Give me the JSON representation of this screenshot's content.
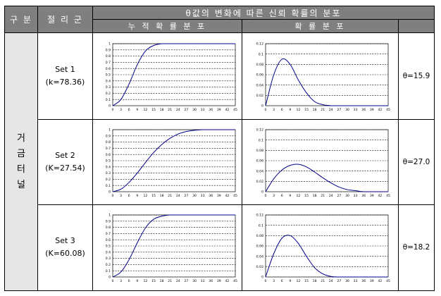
{
  "header": {
    "category": "구 분",
    "cluster": "절 리 군",
    "theta_header": "θ값의 변화에 따른 신뢰 확률의 분포",
    "cumulative": "누 적 확 률 분 포",
    "probability": "확 률 분 포"
  },
  "category_label": "거 금 터 널",
  "rows": [
    {
      "set": "Set 1",
      "k": "(k=78.36)",
      "theta": "θ=15.9"
    },
    {
      "set": "Set 2",
      "k": "(K=27.54)",
      "theta": "θ=27.0"
    },
    {
      "set": "Set 3",
      "k": "(K=60.08)",
      "theta": "θ=18.2"
    }
  ],
  "chart_data": [
    {
      "type": "line",
      "set": "Set 1",
      "kind": "cumulative",
      "x": [
        0,
        3,
        6,
        9,
        12,
        15,
        18,
        21,
        24,
        27,
        30,
        33,
        36,
        39,
        42,
        45
      ],
      "y": [
        0,
        0.1,
        0.35,
        0.66,
        0.88,
        0.97,
        1,
        1,
        1,
        1,
        1,
        1,
        1,
        1,
        1,
        1
      ],
      "xlim": [
        0,
        45
      ],
      "ylim": [
        0,
        1
      ],
      "xticks": [
        "0",
        "3",
        "6",
        "9",
        "12",
        "15",
        "18",
        "21",
        "24",
        "27",
        "30",
        "33",
        "36",
        "39",
        "42",
        "45"
      ],
      "yticks": [
        "0",
        "0.1",
        "0.2",
        "0.3",
        "0.4",
        "0.5",
        "0.6",
        "0.7",
        "0.8",
        "0.9",
        "1"
      ]
    },
    {
      "type": "line",
      "set": "Set 1",
      "kind": "probability",
      "x": [
        0,
        3,
        6,
        9,
        12,
        15,
        18,
        21,
        24,
        27,
        30,
        33,
        36,
        39,
        42,
        45
      ],
      "y": [
        0,
        0.06,
        0.09,
        0.08,
        0.05,
        0.025,
        0.008,
        0.002,
        0,
        0,
        0,
        0,
        0,
        0,
        0,
        0
      ],
      "xlim": [
        0,
        45
      ],
      "ylim": [
        0,
        0.12
      ],
      "xticks": [
        "0",
        "3",
        "6",
        "9",
        "12",
        "15",
        "18",
        "21",
        "24",
        "27",
        "30",
        "33",
        "36",
        "39",
        "42",
        "45"
      ],
      "yticks": [
        "0",
        "0.02",
        "0.04",
        "0.06",
        "0.08",
        "0.1",
        "0.12"
      ]
    },
    {
      "type": "line",
      "set": "Set 2",
      "kind": "cumulative",
      "x": [
        0,
        3,
        6,
        9,
        12,
        15,
        18,
        21,
        24,
        27,
        30,
        33,
        36,
        39,
        42,
        45
      ],
      "y": [
        0,
        0.04,
        0.15,
        0.3,
        0.47,
        0.63,
        0.76,
        0.86,
        0.93,
        0.97,
        0.99,
        1,
        1,
        1,
        1,
        1
      ],
      "xlim": [
        0,
        45
      ],
      "ylim": [
        0,
        1
      ],
      "xticks": [
        "0",
        "3",
        "6",
        "9",
        "12",
        "15",
        "18",
        "21",
        "24",
        "27",
        "30",
        "33",
        "36",
        "39",
        "42",
        "45"
      ],
      "yticks": [
        "0",
        "0.1",
        "0.2",
        "0.3",
        "0.4",
        "0.5",
        "0.6",
        "0.7",
        "0.8",
        "0.9",
        "1"
      ]
    },
    {
      "type": "line",
      "set": "Set 2",
      "kind": "probability",
      "x": [
        0,
        3,
        6,
        9,
        12,
        15,
        18,
        21,
        24,
        27,
        30,
        33,
        36,
        39,
        42,
        45
      ],
      "y": [
        0,
        0.025,
        0.042,
        0.051,
        0.053,
        0.048,
        0.038,
        0.027,
        0.017,
        0.009,
        0.004,
        0.002,
        0,
        0,
        0,
        0
      ],
      "xlim": [
        0,
        45
      ],
      "ylim": [
        0,
        0.12
      ],
      "xticks": [
        "0",
        "3",
        "6",
        "9",
        "12",
        "15",
        "18",
        "21",
        "24",
        "27",
        "30",
        "33",
        "36",
        "39",
        "42",
        "45"
      ],
      "yticks": [
        "0",
        "0.02",
        "0.04",
        "0.06",
        "0.08",
        "0.1",
        "0.12"
      ]
    },
    {
      "type": "line",
      "set": "Set 3",
      "kind": "cumulative",
      "x": [
        0,
        3,
        6,
        9,
        12,
        15,
        18,
        21,
        24,
        27,
        30,
        33,
        36,
        39,
        42,
        45
      ],
      "y": [
        0,
        0.08,
        0.28,
        0.55,
        0.79,
        0.93,
        0.98,
        1,
        1,
        1,
        1,
        1,
        1,
        1,
        1,
        1
      ],
      "xlim": [
        0,
        45
      ],
      "ylim": [
        0,
        1
      ],
      "xticks": [
        "0",
        "3",
        "6",
        "9",
        "12",
        "15",
        "18",
        "21",
        "24",
        "27",
        "30",
        "33",
        "36",
        "39",
        "42",
        "45"
      ],
      "yticks": [
        "0",
        "0.1",
        "0.2",
        "0.3",
        "0.4",
        "0.5",
        "0.6",
        "0.7",
        "0.8",
        "0.9",
        "1"
      ]
    },
    {
      "type": "line",
      "set": "Set 3",
      "kind": "probability",
      "x": [
        0,
        3,
        6,
        9,
        12,
        15,
        18,
        21,
        24,
        27,
        30,
        33,
        36,
        39,
        42,
        45
      ],
      "y": [
        0,
        0.045,
        0.075,
        0.08,
        0.065,
        0.04,
        0.018,
        0.006,
        0.001,
        0,
        0,
        0,
        0,
        0,
        0,
        0
      ],
      "xlim": [
        0,
        45
      ],
      "ylim": [
        0,
        0.12
      ],
      "xticks": [
        "0",
        "3",
        "6",
        "9",
        "12",
        "15",
        "18",
        "21",
        "24",
        "27",
        "30",
        "33",
        "36",
        "39",
        "42",
        "45"
      ],
      "yticks": [
        "0",
        "0.02",
        "0.04",
        "0.06",
        "0.08",
        "0.1",
        "0.12"
      ]
    }
  ]
}
